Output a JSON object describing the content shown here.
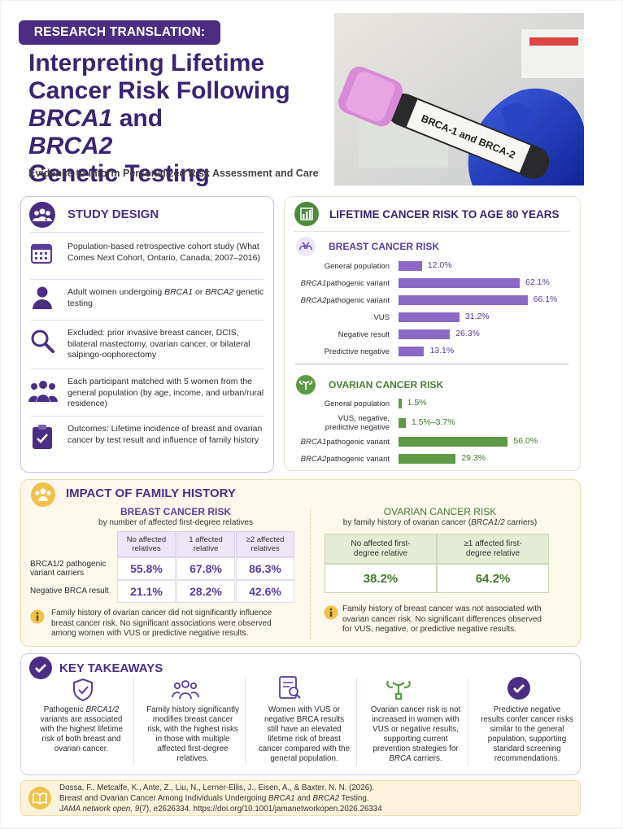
{
  "header": {
    "badge": "RESEARCH TRANSLATION:",
    "title": [
      "Interpreting Lifetime",
      "Cancer Risk Following",
      {
        "italic": "BRCA1"
      },
      "and",
      {
        "italic": "BRCA2"
      },
      "Genetic Testing"
    ],
    "subtitle": "Evidence to Inform Personalized Risk Assessment and Care",
    "photo_label": "BRCA-1 and BRCA-2"
  },
  "study_design": {
    "title": "STUDY DESIGN",
    "items": [
      "Population-based retrospective cohort study (What Comes Next Cohort, Ontario, Canada; 2007–2016)",
      [
        "Adult women undergoing ",
        {
          "italic": "BRCA1"
        },
        " or ",
        {
          "italic": "BRCA2"
        },
        " genetic testing"
      ],
      "Excluded: prior invasive breast cancer, DCIS, bilateral mastectomy, ovarian cancer, or bilateral salpingo-oophorectomy",
      "Each participant matched with 5 women from the general population (by age, income, and urban/rural residence)",
      "Outcomes: Lifetime incidence of breast and ovarian cancer by test result and influence of family history"
    ]
  },
  "lifetime_risk": {
    "title": "LIFETIME CANCER RISK TO AGE 80 YEARS",
    "breast": {
      "title": "BREAST CANCER RISK",
      "color": "#8b69c6",
      "categories": [
        "General population",
        [
          {
            "italic": "BRCA1"
          },
          " pathogenic variant"
        ],
        [
          {
            "italic": "BRCA2"
          },
          " pathogenic variant"
        ],
        "VUS",
        "Negative result",
        "Predictive negative"
      ],
      "values": [
        12.0,
        62.1,
        66.1,
        31.2,
        26.3,
        13.1
      ],
      "value_labels": [
        "12.0%",
        "62.1%",
        "66.1%",
        "31.2%",
        "26.3%",
        "13.1%"
      ]
    },
    "ovarian": {
      "title": "OVARIAN CANCER RISK",
      "color": "#5e9a45",
      "categories": [
        "General population",
        "VUS, negative, predictive negative",
        [
          {
            "italic": "BRCA1"
          },
          " pathogenic variant"
        ],
        [
          {
            "italic": "BRCA2"
          },
          " pathogenic variant"
        ]
      ],
      "values": [
        1.5,
        [
          1.5,
          3.7
        ],
        56.0,
        29.3
      ],
      "value_labels": [
        "1.5%",
        "1.5%–3.7%",
        "56.0%",
        "29.3%"
      ]
    }
  },
  "family_history": {
    "title": "IMPACT OF FAMILY HISTORY",
    "breast": {
      "title": "BREAST CANCER RISK",
      "subtitle": "by number of affected first-degree relatives",
      "columns": [
        "No affected relatives",
        "1 affected relative",
        "≥2 affected relatives"
      ],
      "rows": [
        {
          "label": "BRCA1/2 pathogenic variant carriers",
          "cells": [
            "55.8%",
            "67.8%",
            "86.3%"
          ]
        },
        {
          "label": "Negative BRCA result",
          "cells": [
            "21.1%",
            "28.2%",
            "42.6%"
          ]
        }
      ],
      "note": "Family history of ovarian cancer did not significantly influence breast cancer risk. No significant associations were observed among women with VUS or predictive negative results."
    },
    "ovarian": {
      "title": "OVARIAN CANCER RISK",
      "subtitle": [
        "by family history of ovarian cancer (",
        {
          "italic": "BRCA1/2"
        },
        " carriers)"
      ],
      "columns": [
        "No affected first-degree relative",
        "≥1 affected first-degree relative"
      ],
      "cells": [
        "38.2%",
        "64.2%"
      ],
      "note": "Family history of breast cancer was not associated with ovarian cancer risk. No significant differences observed for VUS, negative, or predictive negative results."
    }
  },
  "key_takeaways": {
    "title": "KEY TAKEAWAYS",
    "items": [
      [
        "Pathogenic ",
        {
          "italic": "BRCA1/2"
        },
        " variants are associated with the highest lifetime risk of both breast and ovarian cancer."
      ],
      "Family history significantly modifies breast cancer risk, with the highest risks in those with multiple affected first-degree relatives.",
      "Women with VUS or negative BRCA results still have an elevated lifetime risk of breast cancer compared with the general population.",
      [
        "Ovarian cancer risk is not increased in women with VUS or negative results, supporting current prevention strategies for ",
        {
          "italic": "BRCA"
        },
        " carriers."
      ],
      "Predictive negative results confer cancer risks similar to the general population, supporting standard screening recommendations."
    ]
  },
  "citation": [
    "Dossa, F., Metcalfe, K., Ante, Z., Liu, N., Lerner-Ellis, J., Eisen, A., & Baxter, N. N. (2026).",
    [
      "Breast and Ovarian Cancer Among Individuals Undergoing ",
      {
        "italic": "BRCA1"
      },
      " and ",
      {
        "italic": "BRCA2"
      },
      " Testing."
    ],
    [
      {
        "italic": "JAMA network open, 9"
      },
      "(7), e2626334. https://doi.org/10.1001/jamanetworkopen.2026.26334"
    ]
  ]
}
